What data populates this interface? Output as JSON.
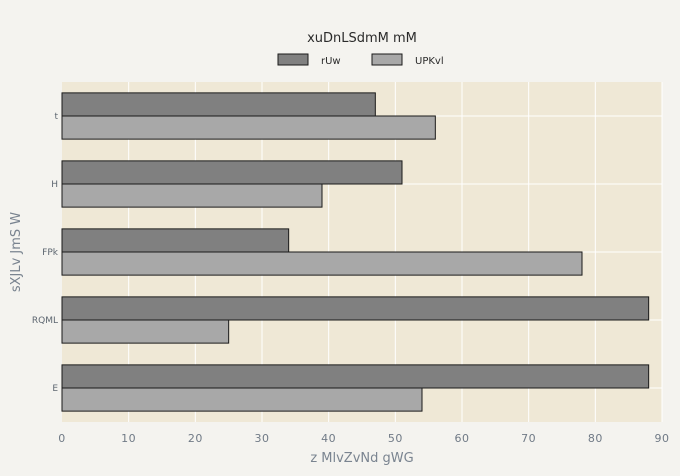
{
  "chart_data": {
    "type": "bar",
    "orientation": "horizontal",
    "title": "xuDnLSdmM mM",
    "xlabel": "z MlvZvNd gWG",
    "ylabel": "sXJLv JmS W",
    "categories": [
      "t",
      "H",
      "FPk",
      "RQML",
      "E"
    ],
    "series": [
      {
        "name": "rUw",
        "color": "#808080",
        "values": [
          47,
          51,
          34,
          88,
          88
        ]
      },
      {
        "name": "UPKvl",
        "color": "#a8a8a8",
        "values": [
          56,
          39,
          78,
          25,
          54
        ]
      }
    ],
    "xlim": [
      0,
      90
    ],
    "xticks": [
      0,
      10,
      20,
      30,
      40,
      50,
      60,
      70,
      80,
      90
    ],
    "grid": true,
    "legend_position": "top-center"
  }
}
